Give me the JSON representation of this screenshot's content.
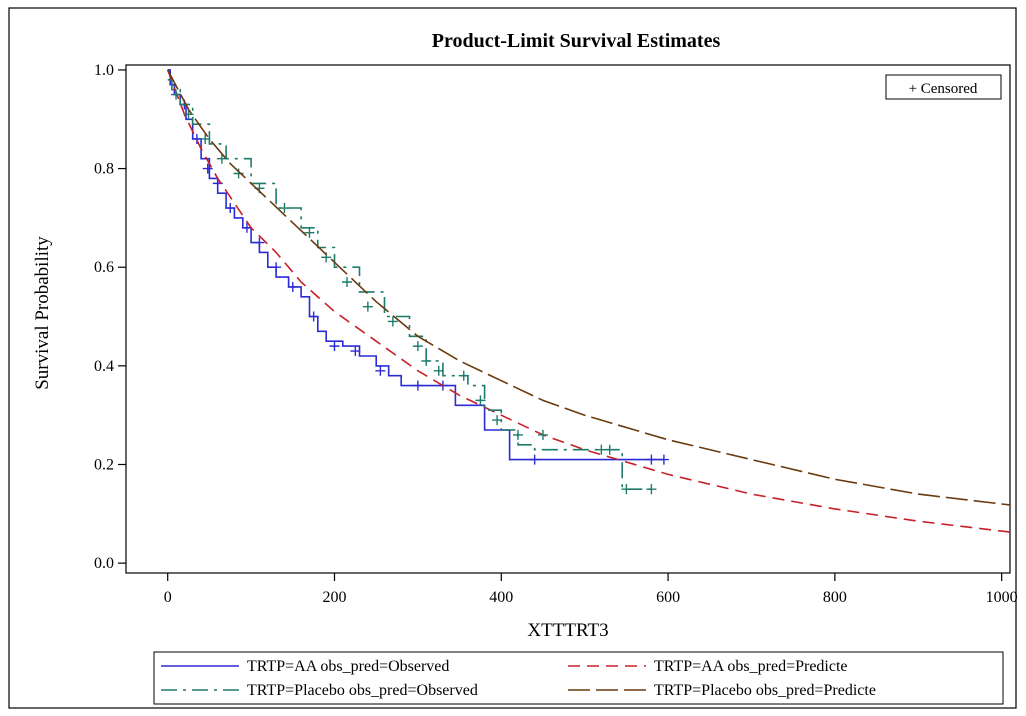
{
  "chart_data": {
    "type": "line",
    "title": "Product-Limit Survival Estimates",
    "xlabel": "XTTTRT3",
    "ylabel": "Survival Probability",
    "xlim": [
      -50,
      1010
    ],
    "ylim": [
      -0.02,
      1.01
    ],
    "xticks": [
      0,
      200,
      400,
      600,
      800,
      1000
    ],
    "yticks": [
      0.0,
      0.2,
      0.4,
      0.6,
      0.8,
      1.0
    ],
    "xtick_labels": [
      "0",
      "200",
      "400",
      "600",
      "800",
      "1000"
    ],
    "ytick_labels": [
      "0.0",
      "0.2",
      "0.4",
      "0.6",
      "0.8",
      "1.0"
    ],
    "grid": false,
    "censor_legend": "+ Censored",
    "legend_position": "bottom",
    "series": [
      {
        "name": "TRTP=AA obs_pred=Observed",
        "kind": "step",
        "color": "#2b2bd6",
        "dash": "solid",
        "points": [
          [
            0,
            1.0
          ],
          [
            3,
            0.97
          ],
          [
            8,
            0.95
          ],
          [
            15,
            0.93
          ],
          [
            22,
            0.9
          ],
          [
            30,
            0.86
          ],
          [
            40,
            0.82
          ],
          [
            50,
            0.78
          ],
          [
            60,
            0.75
          ],
          [
            70,
            0.72
          ],
          [
            80,
            0.7
          ],
          [
            90,
            0.68
          ],
          [
            100,
            0.65
          ],
          [
            110,
            0.63
          ],
          [
            120,
            0.6
          ],
          [
            130,
            0.58
          ],
          [
            145,
            0.56
          ],
          [
            160,
            0.54
          ],
          [
            170,
            0.5
          ],
          [
            180,
            0.47
          ],
          [
            190,
            0.45
          ],
          [
            210,
            0.44
          ],
          [
            230,
            0.42
          ],
          [
            250,
            0.4
          ],
          [
            265,
            0.38
          ],
          [
            280,
            0.36
          ],
          [
            320,
            0.36
          ],
          [
            345,
            0.32
          ],
          [
            380,
            0.27
          ],
          [
            410,
            0.21
          ],
          [
            595,
            0.21
          ]
        ],
        "censored": [
          [
            20,
            0.93
          ],
          [
            35,
            0.86
          ],
          [
            48,
            0.8
          ],
          [
            60,
            0.77
          ],
          [
            75,
            0.72
          ],
          [
            95,
            0.68
          ],
          [
            110,
            0.65
          ],
          [
            130,
            0.6
          ],
          [
            150,
            0.56
          ],
          [
            175,
            0.5
          ],
          [
            200,
            0.44
          ],
          [
            225,
            0.43
          ],
          [
            255,
            0.39
          ],
          [
            300,
            0.36
          ],
          [
            330,
            0.36
          ],
          [
            440,
            0.21
          ],
          [
            580,
            0.21
          ],
          [
            595,
            0.21
          ]
        ]
      },
      {
        "name": "TRTP=AA obs_pred=Predicte",
        "kind": "curve",
        "color": "#c8202a",
        "dash": "dashed",
        "points": [
          [
            0,
            1.0
          ],
          [
            20,
            0.91
          ],
          [
            40,
            0.84
          ],
          [
            60,
            0.78
          ],
          [
            80,
            0.73
          ],
          [
            100,
            0.68
          ],
          [
            130,
            0.63
          ],
          [
            160,
            0.57
          ],
          [
            200,
            0.51
          ],
          [
            250,
            0.45
          ],
          [
            300,
            0.39
          ],
          [
            350,
            0.34
          ],
          [
            400,
            0.3
          ],
          [
            450,
            0.26
          ],
          [
            500,
            0.23
          ],
          [
            600,
            0.18
          ],
          [
            700,
            0.14
          ],
          [
            800,
            0.11
          ],
          [
            900,
            0.085
          ],
          [
            1000,
            0.065
          ],
          [
            1010,
            0.063
          ]
        ]
      },
      {
        "name": "TRTP=Placebo obs_pred=Observed",
        "kind": "step",
        "color": "#1f7a6b",
        "dash": "dashdot",
        "points": [
          [
            0,
            0.98
          ],
          [
            5,
            0.96
          ],
          [
            15,
            0.93
          ],
          [
            30,
            0.89
          ],
          [
            50,
            0.85
          ],
          [
            70,
            0.82
          ],
          [
            100,
            0.77
          ],
          [
            130,
            0.72
          ],
          [
            160,
            0.68
          ],
          [
            180,
            0.64
          ],
          [
            200,
            0.6
          ],
          [
            230,
            0.55
          ],
          [
            260,
            0.5
          ],
          [
            290,
            0.46
          ],
          [
            310,
            0.41
          ],
          [
            330,
            0.38
          ],
          [
            360,
            0.36
          ],
          [
            380,
            0.31
          ],
          [
            400,
            0.27
          ],
          [
            420,
            0.24
          ],
          [
            440,
            0.23
          ],
          [
            540,
            0.23
          ],
          [
            545,
            0.15
          ],
          [
            580,
            0.15
          ]
        ],
        "censored": [
          [
            10,
            0.95
          ],
          [
            25,
            0.91
          ],
          [
            45,
            0.86
          ],
          [
            65,
            0.82
          ],
          [
            85,
            0.79
          ],
          [
            110,
            0.76
          ],
          [
            140,
            0.72
          ],
          [
            170,
            0.67
          ],
          [
            190,
            0.62
          ],
          [
            215,
            0.57
          ],
          [
            240,
            0.52
          ],
          [
            270,
            0.49
          ],
          [
            300,
            0.44
          ],
          [
            310,
            0.41
          ],
          [
            325,
            0.39
          ],
          [
            355,
            0.38
          ],
          [
            375,
            0.33
          ],
          [
            395,
            0.29
          ],
          [
            420,
            0.26
          ],
          [
            450,
            0.26
          ],
          [
            520,
            0.23
          ],
          [
            530,
            0.23
          ],
          [
            550,
            0.15
          ],
          [
            580,
            0.15
          ]
        ]
      },
      {
        "name": "TRTP=Placebo obs_pred=Predicte",
        "kind": "curve",
        "color": "#6b3a0e",
        "dash": "longdash",
        "points": [
          [
            0,
            1.0
          ],
          [
            25,
            0.92
          ],
          [
            50,
            0.86
          ],
          [
            75,
            0.81
          ],
          [
            100,
            0.77
          ],
          [
            150,
            0.69
          ],
          [
            200,
            0.61
          ],
          [
            250,
            0.53
          ],
          [
            300,
            0.46
          ],
          [
            350,
            0.41
          ],
          [
            400,
            0.37
          ],
          [
            450,
            0.33
          ],
          [
            500,
            0.3
          ],
          [
            600,
            0.25
          ],
          [
            700,
            0.21
          ],
          [
            800,
            0.17
          ],
          [
            900,
            0.14
          ],
          [
            1000,
            0.12
          ],
          [
            1010,
            0.118
          ]
        ]
      }
    ]
  }
}
